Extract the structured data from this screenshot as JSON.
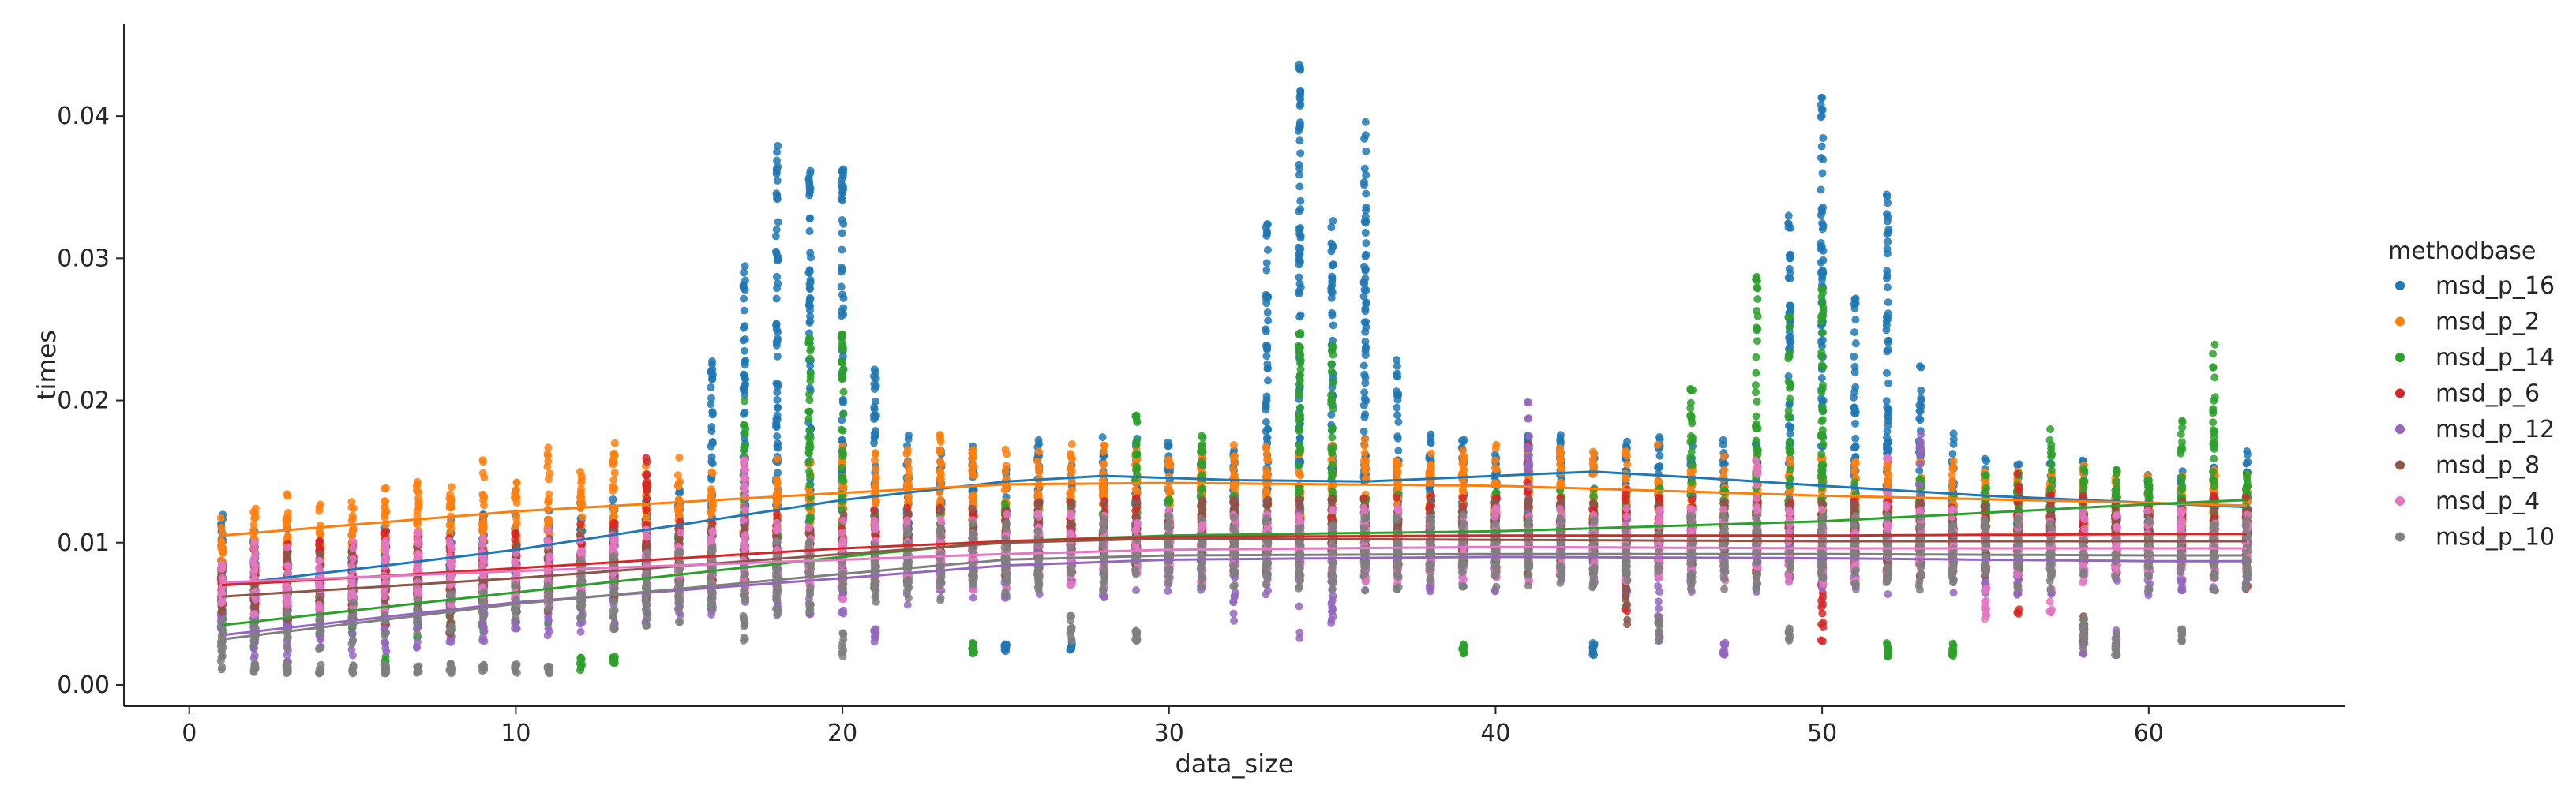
{
  "chart_data": {
    "type": "scatter",
    "title": "",
    "xlabel": "data_size",
    "ylabel": "times",
    "xlim": [
      -2,
      66
    ],
    "ylim": [
      -0.0015,
      0.0465
    ],
    "xticks": [
      0,
      10,
      20,
      30,
      40,
      50,
      60
    ],
    "yticks": [
      0.0,
      0.01,
      0.02,
      0.03,
      0.04
    ],
    "ytick_labels": [
      "0.00",
      "0.01",
      "0.02",
      "0.03",
      "0.04"
    ],
    "grid": false,
    "legend": {
      "title": "methodbase",
      "placement": "right-outside"
    },
    "x_range": [
      1,
      63
    ],
    "series": [
      {
        "name": "msd_p_16",
        "color": "#1f77b4",
        "fit": [
          [
            1,
            0.007
          ],
          [
            10,
            0.0095
          ],
          [
            20,
            0.013
          ],
          [
            25,
            0.0143
          ],
          [
            28,
            0.0147
          ],
          [
            32,
            0.0144
          ],
          [
            36,
            0.0143
          ],
          [
            40,
            0.0147
          ],
          [
            43,
            0.015
          ],
          [
            46,
            0.0146
          ],
          [
            50,
            0.014
          ],
          [
            55,
            0.0133
          ],
          [
            60,
            0.0128
          ],
          [
            63,
            0.0125
          ]
        ],
        "ranges": [
          [
            1,
            0.006,
            0.0125
          ],
          [
            2,
            0.006,
            0.012
          ],
          [
            3,
            0.006,
            0.011
          ],
          [
            4,
            0.006,
            0.011
          ],
          [
            10,
            0.007,
            0.013
          ],
          [
            16,
            0.01,
            0.023
          ],
          [
            17,
            0.012,
            0.03
          ],
          [
            18,
            0.014,
            0.038
          ],
          [
            19,
            0.013,
            0.037
          ],
          [
            20,
            0.013,
            0.037
          ],
          [
            21,
            0.012,
            0.023
          ],
          [
            22,
            0.011,
            0.018
          ],
          [
            25,
            0.002,
            0.003
          ],
          [
            27,
            0.002,
            0.003
          ],
          [
            33,
            0.012,
            0.033
          ],
          [
            34,
            0.015,
            0.044
          ],
          [
            35,
            0.013,
            0.033
          ],
          [
            36,
            0.013,
            0.04
          ],
          [
            37,
            0.011,
            0.023
          ],
          [
            38,
            0.01,
            0.018
          ],
          [
            43,
            0.002,
            0.003
          ],
          [
            49,
            0.013,
            0.033
          ],
          [
            50,
            0.015,
            0.042
          ],
          [
            51,
            0.012,
            0.028
          ],
          [
            52,
            0.013,
            0.035
          ],
          [
            53,
            0.012,
            0.023
          ],
          [
            54,
            0.01,
            0.018
          ],
          [
            60,
            0.009,
            0.015
          ],
          [
            63,
            0.009,
            0.017
          ]
        ]
      },
      {
        "name": "msd_p_2",
        "color": "#ff7f0e",
        "fit": [
          [
            1,
            0.0105
          ],
          [
            10,
            0.0122
          ],
          [
            20,
            0.0135
          ],
          [
            25,
            0.0141
          ],
          [
            30,
            0.0142
          ],
          [
            40,
            0.014
          ],
          [
            50,
            0.0133
          ],
          [
            60,
            0.0128
          ],
          [
            63,
            0.0126
          ]
        ],
        "ranges": [
          [
            1,
            0.008,
            0.012
          ],
          [
            2,
            0.008,
            0.0125
          ],
          [
            5,
            0.008,
            0.013
          ],
          [
            9,
            0.009,
            0.016
          ],
          [
            11,
            0.009,
            0.017
          ],
          [
            13,
            0.01,
            0.017
          ],
          [
            15,
            0.01,
            0.016
          ],
          [
            20,
            0.011,
            0.017
          ],
          [
            23,
            0.011,
            0.018
          ],
          [
            27,
            0.011,
            0.017
          ],
          [
            30,
            0.011,
            0.016
          ],
          [
            36,
            0.011,
            0.018
          ],
          [
            40,
            0.011,
            0.017
          ],
          [
            45,
            0.011,
            0.017
          ],
          [
            50,
            0.011,
            0.017
          ],
          [
            55,
            0.01,
            0.015
          ],
          [
            60,
            0.01,
            0.015
          ],
          [
            63,
            0.01,
            0.016
          ]
        ]
      },
      {
        "name": "msd_p_14",
        "color": "#2ca02c",
        "fit": [
          [
            1,
            0.0042
          ],
          [
            10,
            0.0065
          ],
          [
            20,
            0.009
          ],
          [
            25,
            0.0101
          ],
          [
            30,
            0.0105
          ],
          [
            40,
            0.0108
          ],
          [
            50,
            0.0115
          ],
          [
            60,
            0.0127
          ],
          [
            63,
            0.013
          ]
        ],
        "ranges": [
          [
            1,
            0.004,
            0.008
          ],
          [
            6,
            0.001,
            0.002
          ],
          [
            12,
            0.001,
            0.002
          ],
          [
            13,
            0.0015,
            0.002
          ],
          [
            17,
            0.009,
            0.02
          ],
          [
            19,
            0.01,
            0.025
          ],
          [
            20,
            0.009,
            0.025
          ],
          [
            24,
            0.002,
            0.003
          ],
          [
            29,
            0.009,
            0.019
          ],
          [
            31,
            0.009,
            0.019
          ],
          [
            34,
            0.009,
            0.025
          ],
          [
            35,
            0.009,
            0.024
          ],
          [
            39,
            0.002,
            0.003
          ],
          [
            46,
            0.008,
            0.021
          ],
          [
            48,
            0.01,
            0.029
          ],
          [
            49,
            0.01,
            0.026
          ],
          [
            50,
            0.009,
            0.028
          ],
          [
            52,
            0.002,
            0.003
          ],
          [
            54,
            0.002,
            0.003
          ],
          [
            57,
            0.009,
            0.018
          ],
          [
            61,
            0.009,
            0.02
          ],
          [
            62,
            0.01,
            0.024
          ],
          [
            63,
            0.01,
            0.015
          ]
        ]
      },
      {
        "name": "msd_p_6",
        "color": "#d62728",
        "fit": [
          [
            1,
            0.007
          ],
          [
            10,
            0.0082
          ],
          [
            20,
            0.0096
          ],
          [
            25,
            0.0101
          ],
          [
            30,
            0.0104
          ],
          [
            40,
            0.0105
          ],
          [
            50,
            0.0105
          ],
          [
            60,
            0.0106
          ],
          [
            63,
            0.0106
          ]
        ],
        "ranges": [
          [
            1,
            0.006,
            0.0085
          ],
          [
            6,
            0.004,
            0.011
          ],
          [
            14,
            0.007,
            0.016
          ],
          [
            20,
            0.005,
            0.01
          ],
          [
            30,
            0.008,
            0.012
          ],
          [
            41,
            0.008,
            0.017
          ],
          [
            44,
            0.004,
            0.014
          ],
          [
            50,
            0.003,
            0.009
          ],
          [
            56,
            0.005,
            0.015
          ],
          [
            63,
            0.006,
            0.014
          ]
        ]
      },
      {
        "name": "msd_p_12",
        "color": "#9467bd",
        "fit": [
          [
            1,
            0.0035
          ],
          [
            10,
            0.0058
          ],
          [
            20,
            0.0075
          ],
          [
            25,
            0.0084
          ],
          [
            30,
            0.0088
          ],
          [
            40,
            0.009
          ],
          [
            50,
            0.0089
          ],
          [
            60,
            0.0087
          ],
          [
            63,
            0.0087
          ]
        ],
        "ranges": [
          [
            1,
            0.003,
            0.007
          ],
          [
            17,
            0.008,
            0.016
          ],
          [
            21,
            0.003,
            0.004
          ],
          [
            32,
            0.004,
            0.009
          ],
          [
            34,
            0.003,
            0.013
          ],
          [
            35,
            0.004,
            0.01
          ],
          [
            41,
            0.009,
            0.021
          ],
          [
            45,
            0.003,
            0.007
          ],
          [
            47,
            0.002,
            0.003
          ],
          [
            53,
            0.01,
            0.018
          ],
          [
            58,
            0.002,
            0.004
          ],
          [
            59,
            0.002,
            0.004
          ]
        ]
      },
      {
        "name": "msd_p_8",
        "color": "#8c564b",
        "fit": [
          [
            1,
            0.0062
          ],
          [
            10,
            0.0075
          ],
          [
            20,
            0.0092
          ],
          [
            25,
            0.01
          ],
          [
            30,
            0.0103
          ],
          [
            40,
            0.0102
          ],
          [
            50,
            0.0101
          ],
          [
            60,
            0.0101
          ],
          [
            63,
            0.0101
          ]
        ],
        "ranges": [
          [
            1,
            0.005,
            0.009
          ],
          [
            8,
            0.003,
            0.007
          ],
          [
            30,
            0.008,
            0.012
          ],
          [
            44,
            0.004,
            0.009
          ],
          [
            58,
            0.003,
            0.005
          ]
        ]
      },
      {
        "name": "msd_p_4",
        "color": "#e377c2",
        "fit": [
          [
            1,
            0.0072
          ],
          [
            10,
            0.008
          ],
          [
            20,
            0.0088
          ],
          [
            25,
            0.0092
          ],
          [
            30,
            0.0095
          ],
          [
            40,
            0.0097
          ],
          [
            50,
            0.0096
          ],
          [
            60,
            0.0096
          ],
          [
            63,
            0.0096
          ]
        ],
        "ranges": [
          [
            1,
            0.006,
            0.0085
          ],
          [
            7,
            0.006,
            0.011
          ],
          [
            17,
            0.006,
            0.016
          ],
          [
            20,
            0.006,
            0.012
          ],
          [
            31,
            0.006,
            0.012
          ],
          [
            36,
            0.007,
            0.013
          ],
          [
            48,
            0.007,
            0.016
          ],
          [
            52,
            0.008,
            0.016
          ],
          [
            55,
            0.004,
            0.007
          ],
          [
            57,
            0.005,
            0.012
          ],
          [
            63,
            0.008,
            0.012
          ]
        ]
      },
      {
        "name": "msd_p_10",
        "color": "#7f7f7f",
        "fit": [
          [
            1,
            0.0032
          ],
          [
            10,
            0.0057
          ],
          [
            20,
            0.0078
          ],
          [
            25,
            0.0088
          ],
          [
            30,
            0.0091
          ],
          [
            40,
            0.0092
          ],
          [
            50,
            0.0092
          ],
          [
            60,
            0.0091
          ],
          [
            63,
            0.0091
          ]
        ],
        "ranges": [
          [
            1,
            0.001,
            0.0045
          ],
          [
            2,
            0.0008,
            0.0015
          ],
          [
            3,
            0.0008,
            0.0015
          ],
          [
            4,
            0.0008,
            0.0015
          ],
          [
            5,
            0.0008,
            0.0015
          ],
          [
            6,
            0.0008,
            0.0015
          ],
          [
            7,
            0.0008,
            0.0015
          ],
          [
            8,
            0.0008,
            0.0015
          ],
          [
            9,
            0.0008,
            0.0015
          ],
          [
            10,
            0.0008,
            0.0015
          ],
          [
            11,
            0.0008,
            0.0015
          ],
          [
            17,
            0.003,
            0.005
          ],
          [
            20,
            0.002,
            0.004
          ],
          [
            27,
            0.003,
            0.005
          ],
          [
            29,
            0.003,
            0.004
          ],
          [
            45,
            0.003,
            0.005
          ],
          [
            49,
            0.003,
            0.004
          ],
          [
            58,
            0.0025,
            0.005
          ],
          [
            59,
            0.002,
            0.004
          ],
          [
            61,
            0.003,
            0.004
          ]
        ]
      }
    ]
  }
}
